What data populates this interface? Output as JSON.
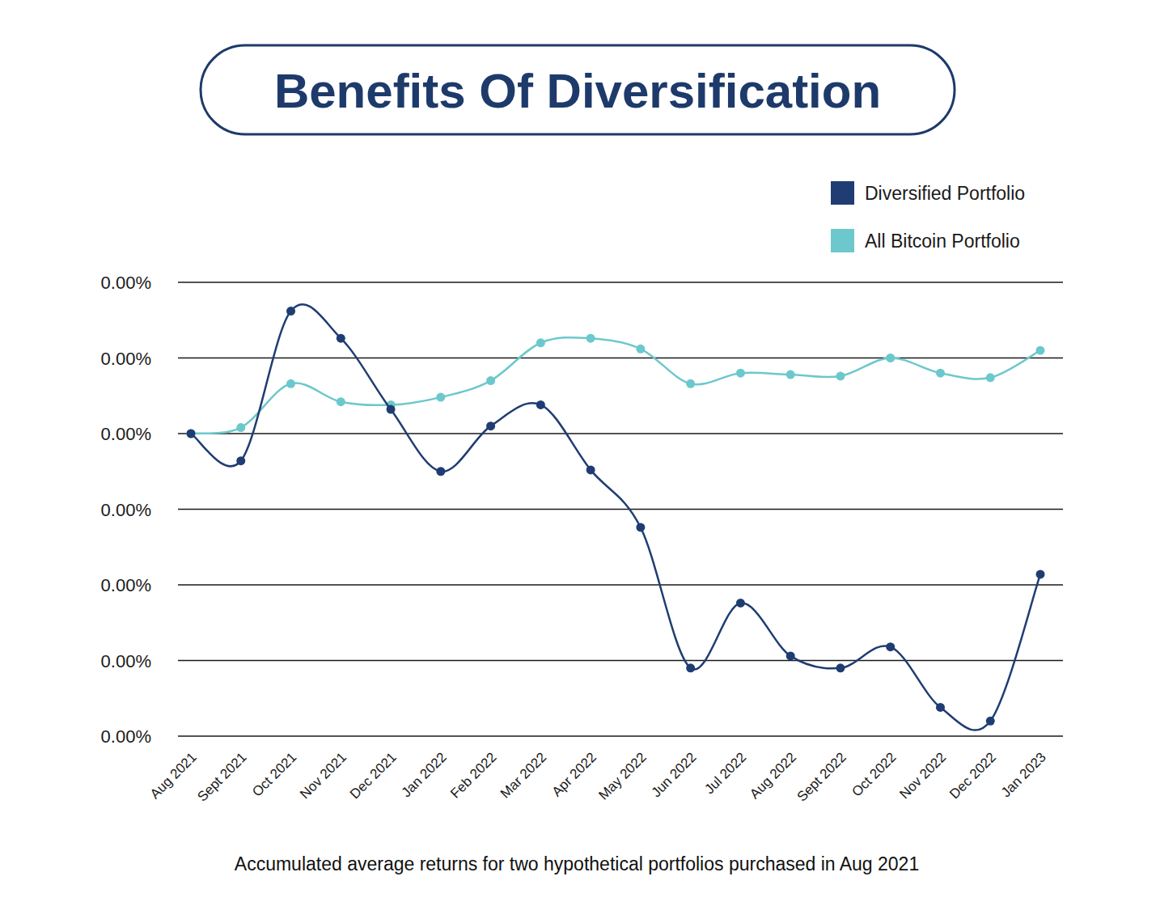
{
  "chart_data": {
    "type": "line",
    "title": "Benefits Of Diversification",
    "caption": "Accumulated average returns for two hypothetical portfolios purchased in Aug 2021",
    "categories": [
      "Aug 2021",
      "Sept 2021",
      "Oct 2021",
      "Nov 2021",
      "Dec 2021",
      "Jan 2022",
      "Feb 2022",
      "Mar 2022",
      "Apr 2022",
      "May 2022",
      "Jun 2022",
      "Jul 2022",
      "Aug 2022",
      "Sept 2022",
      "Oct 2022",
      "Nov 2022",
      "Dec 2022",
      "Jan 2023"
    ],
    "series": [
      {
        "name": "Diversified Portfolio",
        "color": "#1f3d72",
        "marker": "circle",
        "line_style": "solid",
        "values": [
          0.002,
          0.00182,
          0.00281,
          0.00263,
          0.00216,
          0.00175,
          0.00205,
          0.00219,
          0.00176,
          0.00138,
          0.00045,
          0.00088,
          0.00053,
          0.00045,
          0.00059,
          0.00019,
          0.0001,
          0.00107
        ]
      },
      {
        "name": "All Bitcoin Portfolio",
        "color": "#6cc8cc",
        "marker": "circle",
        "line_style": "solid",
        "values": [
          0.002,
          0.00204,
          0.00233,
          0.00221,
          0.00219,
          0.00224,
          0.00235,
          0.0026,
          0.00263,
          0.00256,
          0.00233,
          0.0024,
          0.00239,
          0.00238,
          0.0025,
          0.0024,
          0.00237,
          0.00255
        ]
      }
    ],
    "ylim": [
      0,
      0.003
    ],
    "yticks": [
      {
        "value": 0,
        "label": "0.00%"
      },
      {
        "value": 0.0005,
        "label": "0.00%"
      },
      {
        "value": 0.001,
        "label": "0.00%"
      },
      {
        "value": 0.0015,
        "label": "0.00%"
      },
      {
        "value": 0.002,
        "label": "0.00%"
      },
      {
        "value": 0.0025,
        "label": "0.00%"
      },
      {
        "value": 0.003,
        "label": "0.00%"
      }
    ],
    "grid": true,
    "legend": "top-right"
  }
}
